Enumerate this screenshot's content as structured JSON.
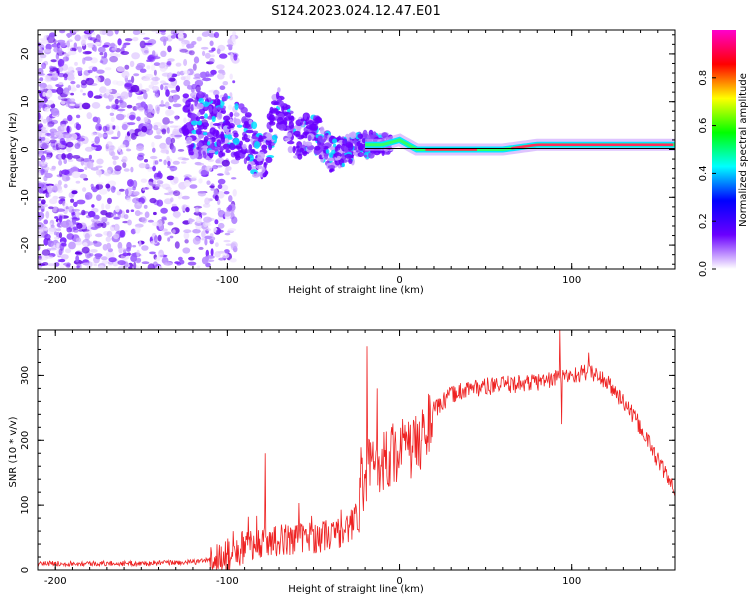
{
  "title": "S124.2023.024.12.47.E01",
  "chart_data": [
    {
      "type": "heatmap",
      "xlabel": "Height of straight line (km)",
      "ylabel": "Frequency (Hz)",
      "xlim": [
        -210,
        160
      ],
      "ylim": [
        -25,
        25
      ],
      "xticks": [
        -200,
        -100,
        0,
        100
      ],
      "yticks": [
        -20,
        -10,
        0,
        10,
        20
      ],
      "colorbar": {
        "label": "Normalized spectral amplitude",
        "range": [
          0,
          1
        ],
        "ticks": [
          0.0,
          0.2,
          0.4,
          0.6,
          0.8
        ],
        "colormap": [
          "#ffffff",
          "#6a00ff",
          "#0000ff",
          "#00ffff",
          "#00ff00",
          "#ffff00",
          "#ff0000",
          "#ff00cc"
        ]
      },
      "ridge": {
        "points": [
          [
            -120,
            5
          ],
          [
            -100,
            5
          ],
          [
            -90,
            3
          ],
          [
            -80,
            -2
          ],
          [
            -70,
            9
          ],
          [
            -60,
            2
          ],
          [
            -50,
            4
          ],
          [
            -40,
            -1
          ],
          [
            -30,
            0
          ],
          [
            -20,
            1
          ],
          [
            -10,
            1
          ],
          [
            0,
            2
          ],
          [
            10,
            0
          ],
          [
            20,
            0
          ],
          [
            40,
            0
          ],
          [
            60,
            0
          ],
          [
            80,
            1
          ],
          [
            100,
            1
          ],
          [
            120,
            1
          ],
          [
            140,
            1
          ],
          [
            160,
            1
          ]
        ],
        "peak_band": [
          [
            15,
            45
          ],
          [
            65,
            160
          ]
        ]
      }
    },
    {
      "type": "line",
      "xlabel": "Height of straight line (km)",
      "ylabel": "SNR (10 * v/v)",
      "xlim": [
        -210,
        160
      ],
      "ylim": [
        0,
        370
      ],
      "xticks": [
        -200,
        -100,
        0,
        100
      ],
      "yticks": [
        0,
        100,
        200,
        300
      ],
      "color": "#ee2222",
      "envelope": {
        "x": [
          -210,
          -150,
          -120,
          -100,
          -90,
          -80,
          -70,
          -60,
          -50,
          -40,
          -30,
          -25,
          -20,
          -15,
          -10,
          0,
          10,
          15,
          20,
          30,
          40,
          60,
          80,
          90,
          100,
          110,
          115,
          120,
          130,
          140,
          150,
          160
        ],
        "y": [
          10,
          10,
          12,
          20,
          35,
          45,
          45,
          50,
          50,
          55,
          60,
          85,
          150,
          165,
          170,
          185,
          190,
          215,
          245,
          270,
          280,
          285,
          290,
          295,
          300,
          305,
          300,
          290,
          260,
          220,
          170,
          120
        ]
      },
      "spikes": [
        [
          -78,
          180
        ],
        [
          -19,
          345
        ],
        [
          -13,
          280
        ],
        [
          93,
          370
        ],
        [
          94,
          225
        ],
        [
          110,
          335
        ]
      ]
    }
  ]
}
